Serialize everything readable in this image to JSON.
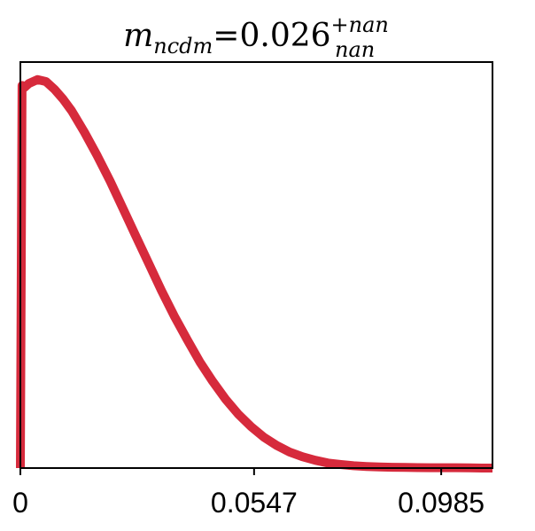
{
  "chart_data": {
    "type": "line",
    "title": {
      "symbol": "m",
      "subscript_label": "ncdm",
      "equals": "=",
      "value": "0.026",
      "upper_error": "+nan",
      "lower_error": "nan"
    },
    "xlabel": "",
    "ylabel": "",
    "xlim": [
      0,
      0.1105
    ],
    "ylim": [
      0,
      1.04
    ],
    "xticks": [
      {
        "value": 0,
        "label": "0"
      },
      {
        "value": 0.0547,
        "label": "0.0547"
      },
      {
        "value": 0.0985,
        "label": "0.0985"
      }
    ],
    "yticks_shown": false,
    "grid": false,
    "series": [
      {
        "color": "#d62a3c",
        "x": [
          0.0,
          0.0004,
          0.001,
          0.002,
          0.004,
          0.006,
          0.008,
          0.01,
          0.012,
          0.015,
          0.018,
          0.021,
          0.024,
          0.027,
          0.03,
          0.033,
          0.036,
          0.039,
          0.042,
          0.045,
          0.048,
          0.051,
          0.054,
          0.057,
          0.06,
          0.063,
          0.066,
          0.069,
          0.072,
          0.075,
          0.078,
          0.081,
          0.084,
          0.087,
          0.09,
          0.093,
          0.096,
          0.099,
          0.102,
          0.105,
          0.108,
          0.1105
        ],
        "y": [
          0.0,
          0.98,
          0.975,
          0.985,
          0.995,
          0.99,
          0.97,
          0.945,
          0.915,
          0.86,
          0.8,
          0.735,
          0.665,
          0.595,
          0.525,
          0.455,
          0.39,
          0.33,
          0.272,
          0.222,
          0.177,
          0.138,
          0.106,
          0.079,
          0.058,
          0.041,
          0.029,
          0.02,
          0.013,
          0.009,
          0.006,
          0.004,
          0.003,
          0.002,
          0.0015,
          0.0012,
          0.001,
          0.001,
          0.0008,
          0.0006,
          0.0,
          0.0
        ]
      }
    ]
  }
}
